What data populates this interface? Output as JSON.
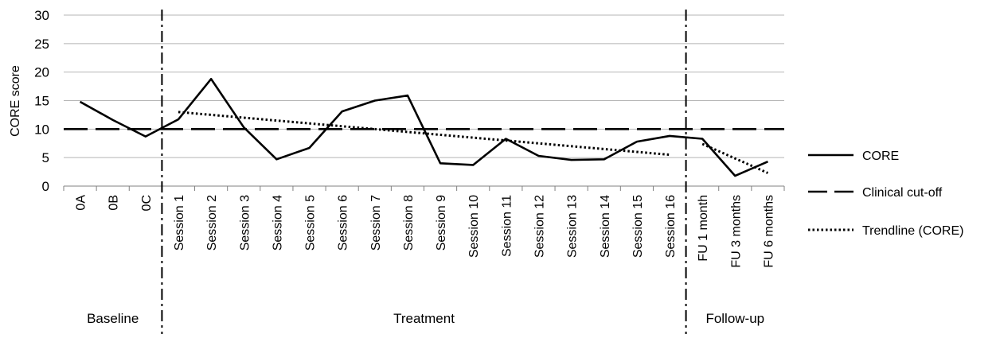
{
  "chart_data": {
    "type": "line",
    "ylabel": "CORE score",
    "xlabel": "",
    "ylim": [
      0,
      30
    ],
    "yticks": [
      "0",
      "5",
      "10",
      "15",
      "20",
      "25",
      "30"
    ],
    "grid": true,
    "legend_position": "right",
    "categories": [
      "0A",
      "0B",
      "0C",
      "Session 1",
      "Session 2",
      "Session 3",
      "Session 4",
      "Session 5",
      "Session 6",
      "Session 7",
      "Session 8",
      "Session 9",
      "Session 10",
      "Session 11",
      "Session 12",
      "Session 13",
      "Session 14",
      "Session 15",
      "Session 16",
      "FU 1 month",
      "FU 3 months",
      "FU 6 months"
    ],
    "phases": [
      {
        "label": "Baseline"
      },
      {
        "label": "Treatment"
      },
      {
        "label": "Follow-up"
      }
    ],
    "series": [
      {
        "name": "CORE",
        "style": "solid",
        "values": [
          14.8,
          11.6,
          8.7,
          11.7,
          18.8,
          10.3,
          4.7,
          6.7,
          13.1,
          15.0,
          15.9,
          4.0,
          3.7,
          8.3,
          5.3,
          4.6,
          4.7,
          7.8,
          8.8,
          8.3,
          1.8,
          4.3
        ]
      },
      {
        "name": "Clinical cut-off",
        "style": "dashed",
        "values": [
          10,
          10,
          10,
          10,
          10,
          10,
          10,
          10,
          10,
          10,
          10,
          10,
          10,
          10,
          10,
          10,
          10,
          10,
          10,
          10,
          10,
          10
        ]
      },
      {
        "name": "Trendline (CORE)",
        "style": "dotted",
        "segments": [
          {
            "from": "Session 1",
            "to": "Session 16",
            "start": 13.0,
            "end": 5.5
          },
          {
            "from": "FU 1 month",
            "to": "FU 6 months",
            "start": 7.4,
            "end": 2.3
          }
        ]
      }
    ]
  },
  "colors": {
    "line": "#000000",
    "grid": "#b5b5b5",
    "axis": "#808080"
  }
}
